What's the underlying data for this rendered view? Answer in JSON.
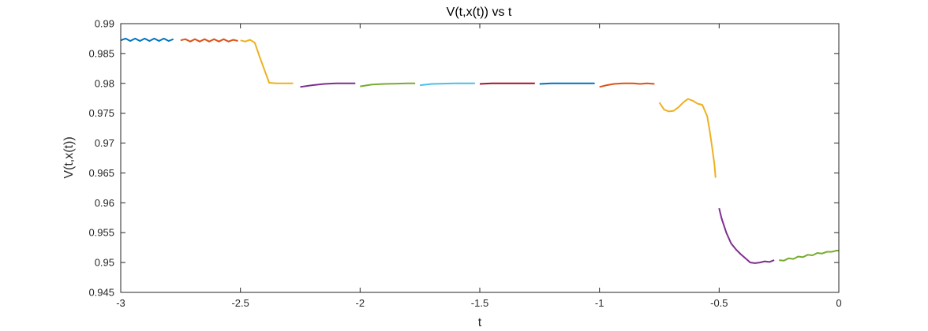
{
  "chart_data": {
    "type": "line",
    "title": "V(t,x(t)) vs t",
    "xlabel": "t",
    "ylabel": "V(t,x(t))",
    "xlim": [
      -3,
      0
    ],
    "ylim": [
      0.945,
      0.99
    ],
    "xticks": [
      -3,
      -2.5,
      -2,
      -1.5,
      -1,
      -0.5,
      0
    ],
    "xtick_labels": [
      "-3",
      "-2.5",
      "-2",
      "-1.5",
      "-1",
      "-0.5",
      "0"
    ],
    "yticks": [
      0.945,
      0.95,
      0.955,
      0.96,
      0.965,
      0.97,
      0.975,
      0.98,
      0.985,
      0.99
    ],
    "ytick_labels": [
      "0.945",
      "0.95",
      "0.955",
      "0.96",
      "0.965",
      "0.97",
      "0.975",
      "0.98",
      "0.985",
      "0.99"
    ],
    "grid": false,
    "box": true,
    "series": [
      {
        "color": "#0072BD",
        "points": [
          [
            -3.0,
            0.9872
          ],
          [
            -2.98,
            0.9875
          ],
          [
            -2.96,
            0.9871
          ],
          [
            -2.94,
            0.9875
          ],
          [
            -2.92,
            0.9871
          ],
          [
            -2.9,
            0.9875
          ],
          [
            -2.88,
            0.9871
          ],
          [
            -2.86,
            0.9875
          ],
          [
            -2.84,
            0.9871
          ],
          [
            -2.82,
            0.9875
          ],
          [
            -2.8,
            0.9871
          ],
          [
            -2.78,
            0.9874
          ]
        ]
      },
      {
        "color": "#D95319",
        "points": [
          [
            -2.75,
            0.9872
          ],
          [
            -2.73,
            0.9874
          ],
          [
            -2.71,
            0.987
          ],
          [
            -2.69,
            0.9874
          ],
          [
            -2.67,
            0.987
          ],
          [
            -2.65,
            0.9874
          ],
          [
            -2.63,
            0.987
          ],
          [
            -2.61,
            0.9874
          ],
          [
            -2.59,
            0.987
          ],
          [
            -2.57,
            0.9874
          ],
          [
            -2.55,
            0.987
          ],
          [
            -2.53,
            0.9873
          ],
          [
            -2.51,
            0.9871
          ]
        ]
      },
      {
        "color": "#EDB120",
        "points": [
          [
            -2.5,
            0.9872
          ],
          [
            -2.48,
            0.987
          ],
          [
            -2.46,
            0.9873
          ],
          [
            -2.44,
            0.9868
          ],
          [
            -2.42,
            0.9845
          ],
          [
            -2.4,
            0.9823
          ],
          [
            -2.38,
            0.9801
          ],
          [
            -2.35,
            0.98
          ],
          [
            -2.28,
            0.98
          ]
        ]
      },
      {
        "color": "#7E2F8E",
        "points": [
          [
            -2.25,
            0.9794
          ],
          [
            -2.2,
            0.9797
          ],
          [
            -2.15,
            0.9799
          ],
          [
            -2.1,
            0.98
          ],
          [
            -2.02,
            0.98
          ]
        ]
      },
      {
        "color": "#77AC30",
        "points": [
          [
            -2.0,
            0.9795
          ],
          [
            -1.95,
            0.9798
          ],
          [
            -1.9,
            0.9799
          ],
          [
            -1.8,
            0.98
          ],
          [
            -1.77,
            0.98
          ]
        ]
      },
      {
        "color": "#4DBEEE",
        "points": [
          [
            -1.75,
            0.9797
          ],
          [
            -1.7,
            0.9799
          ],
          [
            -1.6,
            0.98
          ],
          [
            -1.52,
            0.98
          ]
        ]
      },
      {
        "color": "#A2142F",
        "points": [
          [
            -1.5,
            0.9799
          ],
          [
            -1.45,
            0.98
          ],
          [
            -1.35,
            0.98
          ],
          [
            -1.27,
            0.98
          ]
        ]
      },
      {
        "color": "#0072BD",
        "points": [
          [
            -1.25,
            0.9799
          ],
          [
            -1.2,
            0.98
          ],
          [
            -1.1,
            0.98
          ],
          [
            -1.02,
            0.98
          ]
        ]
      },
      {
        "color": "#D95319",
        "points": [
          [
            -1.0,
            0.9794
          ],
          [
            -0.97,
            0.9797
          ],
          [
            -0.94,
            0.9799
          ],
          [
            -0.9,
            0.98
          ],
          [
            -0.86,
            0.98
          ],
          [
            -0.83,
            0.9799
          ],
          [
            -0.8,
            0.98
          ],
          [
            -0.77,
            0.9799
          ]
        ]
      },
      {
        "color": "#EDB120",
        "points": [
          [
            -0.75,
            0.9768
          ],
          [
            -0.73,
            0.9756
          ],
          [
            -0.71,
            0.9753
          ],
          [
            -0.69,
            0.9754
          ],
          [
            -0.67,
            0.976
          ],
          [
            -0.65,
            0.9768
          ],
          [
            -0.63,
            0.9774
          ],
          [
            -0.61,
            0.9771
          ],
          [
            -0.59,
            0.9766
          ],
          [
            -0.57,
            0.9764
          ],
          [
            -0.55,
            0.9745
          ],
          [
            -0.54,
            0.9722
          ],
          [
            -0.53,
            0.9695
          ],
          [
            -0.52,
            0.9665
          ],
          [
            -0.515,
            0.9642
          ]
        ]
      },
      {
        "color": "#7E2F8E",
        "points": [
          [
            -0.5,
            0.9591
          ],
          [
            -0.49,
            0.9574
          ],
          [
            -0.47,
            0.955
          ],
          [
            -0.45,
            0.9532
          ],
          [
            -0.43,
            0.9522
          ],
          [
            -0.41,
            0.9514
          ],
          [
            -0.39,
            0.9507
          ],
          [
            -0.37,
            0.95
          ],
          [
            -0.35,
            0.9499
          ],
          [
            -0.33,
            0.95
          ],
          [
            -0.31,
            0.9502
          ],
          [
            -0.29,
            0.9501
          ],
          [
            -0.27,
            0.9504
          ]
        ]
      },
      {
        "color": "#77AC30",
        "points": [
          [
            -0.25,
            0.9504
          ],
          [
            -0.23,
            0.9503
          ],
          [
            -0.21,
            0.9507
          ],
          [
            -0.19,
            0.9506
          ],
          [
            -0.17,
            0.951
          ],
          [
            -0.15,
            0.9509
          ],
          [
            -0.13,
            0.9513
          ],
          [
            -0.11,
            0.9512
          ],
          [
            -0.09,
            0.9516
          ],
          [
            -0.07,
            0.9515
          ],
          [
            -0.05,
            0.9518
          ],
          [
            -0.03,
            0.9518
          ],
          [
            -0.01,
            0.952
          ],
          [
            0.0,
            0.952
          ]
        ]
      }
    ]
  }
}
